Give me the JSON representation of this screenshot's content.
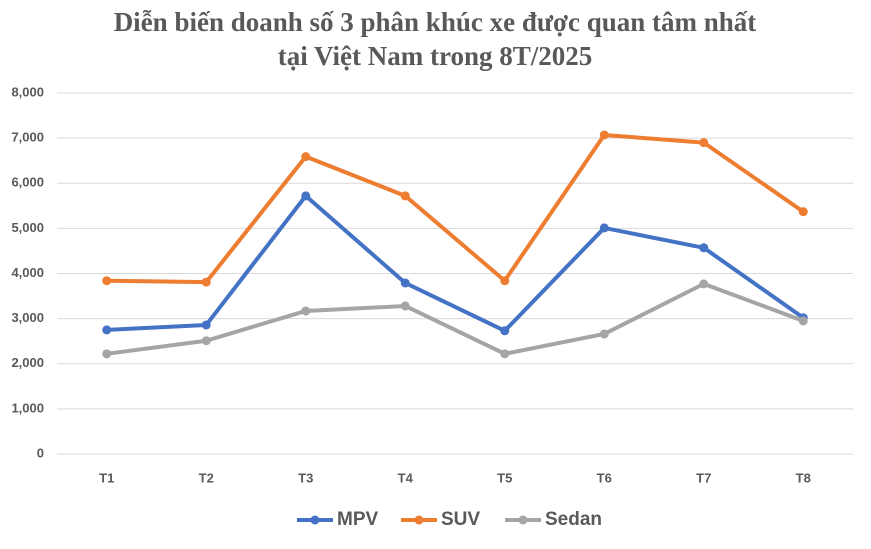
{
  "chart_data": {
    "type": "line",
    "title": [
      "Diễn biến doanh số 3 phân khúc xe được quan tâm nhất",
      "tại Việt Nam trong 8T/2025"
    ],
    "categories": [
      "T1",
      "T2",
      "T3",
      "T4",
      "T5",
      "T6",
      "T7",
      "T8"
    ],
    "series": [
      {
        "name": "MPV",
        "color": "#4472c4",
        "values": [
          2750,
          2860,
          5720,
          3790,
          2730,
          5010,
          4570,
          3020
        ]
      },
      {
        "name": "SUV",
        "color": "#ed7d31",
        "values": [
          3840,
          3810,
          6590,
          5720,
          3840,
          7070,
          6900,
          5370
        ]
      },
      {
        "name": "Sedan",
        "color": "#a5a5a5",
        "values": [
          2220,
          2510,
          3170,
          3280,
          2220,
          2660,
          3770,
          2950
        ]
      }
    ],
    "ylim": [
      0,
      8000
    ],
    "yticks": [
      0,
      {
        "value": 1000,
        "label": "1,000"
      },
      {
        "value": 2000,
        "label": "2,000"
      },
      {
        "value": 3000,
        "label": "3,000"
      },
      {
        "value": 4000,
        "label": "4,000"
      },
      {
        "value": 5000,
        "label": "5,000"
      },
      {
        "value": 6000,
        "label": "6,000"
      },
      {
        "value": 7000,
        "label": "7,000"
      },
      {
        "value": 8000,
        "label": "8,000"
      }
    ],
    "grid": true,
    "legend": "bottom"
  }
}
